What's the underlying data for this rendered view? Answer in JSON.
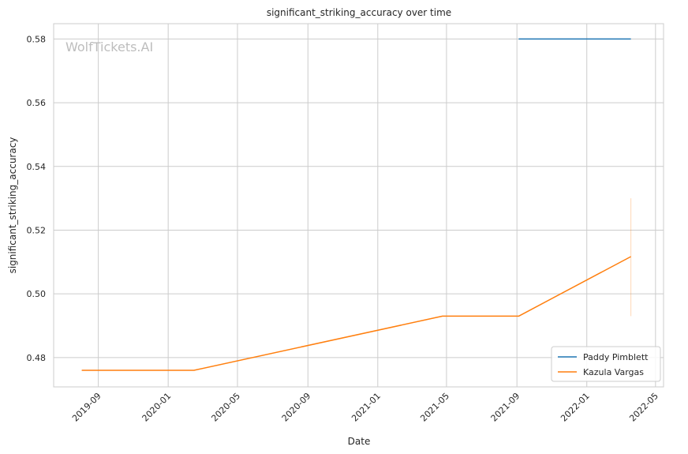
{
  "chart_data": {
    "type": "line",
    "title": "significant_striking_accuracy over time",
    "xlabel": "Date",
    "ylabel": "significant_striking_accuracy",
    "watermark": "WolfTickets.AI",
    "x_ticks": [
      "2019-09",
      "2020-01",
      "2020-05",
      "2020-09",
      "2021-01",
      "2021-05",
      "2021-09",
      "2022-01",
      "2022-05"
    ],
    "y_ticks": [
      0.48,
      0.5,
      0.52,
      0.54,
      0.56,
      0.58
    ],
    "y_tick_labels": [
      "0.48",
      "0.50",
      "0.52",
      "0.54",
      "0.56",
      "0.58"
    ],
    "xlim": [
      "2019-06-15",
      "2022-05-15"
    ],
    "ylim": [
      0.4708,
      0.5848
    ],
    "grid": true,
    "legend_position": "bottom-right",
    "series": [
      {
        "name": "Paddy Pimblett",
        "color": "#1f77b4",
        "points": [
          {
            "x": "2021-09-04",
            "y": 0.58
          },
          {
            "x": "2022-03-19",
            "y": 0.58
          }
        ]
      },
      {
        "name": "Kazula Vargas",
        "color": "#ff7f0e",
        "points": [
          {
            "x": "2019-08-03",
            "y": 0.476
          },
          {
            "x": "2020-02-15",
            "y": 0.476
          },
          {
            "x": "2021-04-24",
            "y": 0.493
          },
          {
            "x": "2021-09-04",
            "y": 0.493
          },
          {
            "x": "2022-03-19",
            "y": 0.5117
          }
        ],
        "error_band": {
          "x": "2022-03-19",
          "low": 0.493,
          "high": 0.53
        }
      }
    ]
  }
}
